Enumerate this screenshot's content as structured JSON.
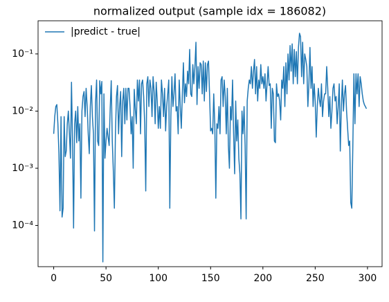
{
  "chart_data": {
    "type": "line",
    "title": "normalized output (sample idx = 186082)",
    "x": [
      0,
      1,
      2,
      3,
      4,
      5,
      6,
      7,
      8,
      9,
      10,
      11,
      12,
      13,
      14,
      15,
      16,
      17,
      18,
      19,
      20,
      21,
      22,
      23,
      24,
      25,
      26,
      27,
      28,
      29,
      30,
      31,
      32,
      33,
      34,
      35,
      36,
      37,
      38,
      39,
      40,
      41,
      42,
      43,
      44,
      45,
      46,
      47,
      48,
      49,
      50,
      51,
      52,
      53,
      54,
      55,
      56,
      57,
      58,
      59,
      60,
      61,
      62,
      63,
      64,
      65,
      66,
      67,
      68,
      69,
      70,
      71,
      72,
      73,
      74,
      75,
      76,
      77,
      78,
      79,
      80,
      81,
      82,
      83,
      84,
      85,
      86,
      87,
      88,
      89,
      90,
      91,
      92,
      93,
      94,
      95,
      96,
      97,
      98,
      99,
      100,
      101,
      102,
      103,
      104,
      105,
      106,
      107,
      108,
      109,
      110,
      111,
      112,
      113,
      114,
      115,
      116,
      117,
      118,
      119,
      120,
      121,
      122,
      123,
      124,
      125,
      126,
      127,
      128,
      129,
      130,
      131,
      132,
      133,
      134,
      135,
      136,
      137,
      138,
      139,
      140,
      141,
      142,
      143,
      144,
      145,
      146,
      147,
      148,
      149,
      150,
      151,
      152,
      153,
      154,
      155,
      156,
      157,
      158,
      159,
      160,
      161,
      162,
      163,
      164,
      165,
      166,
      167,
      168,
      169,
      170,
      171,
      172,
      173,
      174,
      175,
      176,
      177,
      178,
      179,
      180,
      181,
      182,
      183,
      184,
      185,
      186,
      187,
      188,
      189,
      190,
      191,
      192,
      193,
      194,
      195,
      196,
      197,
      198,
      199,
      200,
      201,
      202,
      203,
      204,
      205,
      206,
      207,
      208,
      209,
      210,
      211,
      212,
      213,
      214,
      215,
      216,
      217,
      218,
      219,
      220,
      221,
      222,
      223,
      224,
      225,
      226,
      227,
      228,
      229,
      230,
      231,
      232,
      233,
      234,
      235,
      236,
      237,
      238,
      239,
      240,
      241,
      242,
      243,
      244,
      245,
      246,
      247,
      248,
      249,
      250,
      251,
      252,
      253,
      254,
      255,
      256,
      257,
      258,
      259,
      260,
      261,
      262,
      263,
      264,
      265,
      266,
      267,
      268,
      269,
      270,
      271,
      272,
      273,
      274,
      275,
      276,
      277,
      278,
      279,
      280,
      281,
      282,
      283,
      284,
      285,
      286,
      287,
      288,
      289,
      290,
      291,
      292,
      293,
      294,
      295,
      296,
      297,
      298,
      299
    ],
    "series": [
      {
        "name": "|predict - true|",
        "color": "#1f77b4",
        "values": [
          0.004,
          0.008,
          0.012,
          0.013,
          0.006,
          0.0018,
          0.00018,
          0.008,
          0.00014,
          0.0002,
          0.008,
          0.0016,
          0.002,
          0.006,
          0.01,
          0.004,
          0.0015,
          0.032,
          0.003,
          9e-05,
          0.006,
          0.01,
          0.0028,
          0.012,
          0.003,
          0.006,
          0.0003,
          0.01,
          0.018,
          0.022,
          0.008,
          0.025,
          0.012,
          0.004,
          0.0018,
          0.012,
          0.028,
          0.008,
          0.004,
          8e-05,
          0.014,
          0.035,
          0.003,
          0.0025,
          0.034,
          0.02,
          0.033,
          2.3e-05,
          0.02,
          0.0015,
          0.003,
          0.005,
          0.0035,
          0.0025,
          0.011,
          0.034,
          0.003,
          0.0009,
          0.0002,
          0.004,
          0.018,
          0.028,
          0.004,
          0.012,
          0.022,
          0.0016,
          0.015,
          0.025,
          0.006,
          0.025,
          0.007,
          0.025,
          0.025,
          0.012,
          0.004,
          0.008,
          0.001,
          0.024,
          0.011,
          0.006,
          0.035,
          0.015,
          0.035,
          0.004,
          0.03,
          0.035,
          0.018,
          0.006,
          0.0004,
          0.03,
          0.04,
          0.012,
          0.035,
          0.025,
          0.008,
          0.04,
          0.022,
          0.006,
          0.032,
          0.015,
          0.005,
          0.012,
          0.005,
          0.035,
          0.02,
          0.008,
          0.025,
          0.0045,
          0.012,
          0.02,
          0.035,
          0.0002,
          0.008,
          0.04,
          0.012,
          0.02,
          0.045,
          0.01,
          0.012,
          0.004,
          0.035,
          0.012,
          0.005,
          0.02,
          0.07,
          0.014,
          0.03,
          0.018,
          0.05,
          0.03,
          0.12,
          0.02,
          0.018,
          0.065,
          0.03,
          0.06,
          0.16,
          0.013,
          0.06,
          0.025,
          0.07,
          0.065,
          0.02,
          0.075,
          0.015,
          0.07,
          0.022,
          0.065,
          0.075,
          0.02,
          0.0045,
          0.005,
          0.004,
          0.02,
          0.006,
          0.0003,
          0.006,
          0.005,
          0.012,
          0.004,
          0.035,
          0.04,
          0.012,
          0.035,
          0.018,
          0.004,
          0.025,
          0.0025,
          0.001,
          0.012,
          0.007,
          0.035,
          0.004,
          0.0008,
          0.015,
          0.003,
          0.007,
          0.0015,
          0.0008,
          0.00013,
          0.01,
          0.004,
          0.012,
          0.0025,
          0.00013,
          0.015,
          0.025,
          0.035,
          0.03,
          0.06,
          0.025,
          0.05,
          0.08,
          0.02,
          0.06,
          0.015,
          0.035,
          0.025,
          0.065,
          0.03,
          0.04,
          0.025,
          0.045,
          0.015,
          0.03,
          0.06,
          0.028,
          0.03,
          0.005,
          0.025,
          0.02,
          0.003,
          0.0028,
          0.03,
          0.018,
          0.02,
          0.015,
          0.007,
          0.035,
          0.025,
          0.06,
          0.012,
          0.07,
          0.02,
          0.1,
          0.035,
          0.14,
          0.05,
          0.15,
          0.03,
          0.12,
          0.04,
          0.11,
          0.03,
          0.13,
          0.23,
          0.2,
          0.04,
          0.16,
          0.03,
          0.1,
          0.08,
          0.06,
          0.012,
          0.03,
          0.13,
          0.025,
          0.06,
          0.012,
          0.03,
          0.015,
          0.0035,
          0.012,
          0.025,
          0.016,
          0.012,
          0.03,
          0.008,
          0.015,
          0.02,
          0.02,
          0.06,
          0.025,
          0.008,
          0.018,
          0.005,
          0.01,
          0.025,
          0.03,
          0.015,
          0.018,
          0.006,
          0.012,
          0.03,
          0.002,
          0.012,
          0.035,
          0.01,
          0.02,
          0.028,
          0.01,
          0.005,
          0.0025,
          0.003,
          0.00025,
          0.0002,
          0.0025,
          0.045,
          0.006,
          0.045,
          0.02,
          0.045,
          0.012,
          0.04,
          0.03,
          0.02,
          0.015,
          0.013,
          0.012,
          0.011
        ]
      }
    ],
    "xlim": [
      -14.95,
      313.95
    ],
    "xticks": [
      0,
      50,
      100,
      150,
      200,
      250,
      300
    ],
    "ylim": [
      1.9e-05,
      0.38
    ],
    "log_y": true,
    "yticks": [
      {
        "value": 0.0001,
        "label": "10⁻⁴"
      },
      {
        "value": 0.001,
        "label": "10⁻³"
      },
      {
        "value": 0.01,
        "label": "10⁻²"
      },
      {
        "value": 0.1,
        "label": "10⁻¹"
      }
    ],
    "legend": "upper left"
  }
}
